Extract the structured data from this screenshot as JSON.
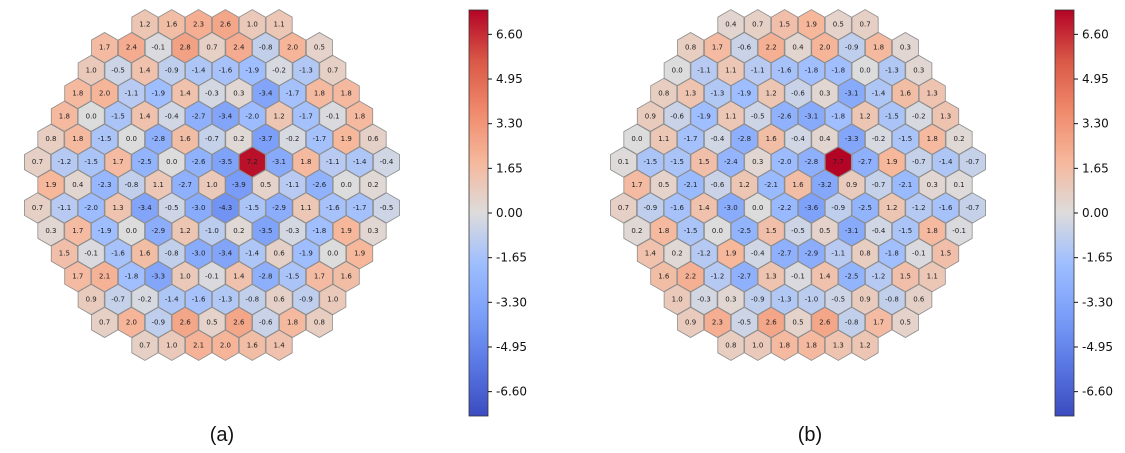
{
  "chart_data": [
    {
      "type": "heatmap",
      "panel_label": "(a)",
      "layout": "hexagonal",
      "rows": [
        [
          "1.2",
          "1.6",
          "2.3",
          "2.6",
          "1.0",
          "1.1"
        ],
        [
          "1.7",
          "2.4",
          "-0.1",
          "2.8",
          "0.7",
          "2.4",
          "-0.8",
          "2.0",
          "0.5"
        ],
        [
          "1.0",
          "-0.5",
          "1.4",
          "-0.9",
          "-1.4",
          "-1.6",
          "-1.9",
          "-0.2",
          "-1.3",
          "0.7"
        ],
        [
          "1.8",
          "2.0",
          "-1.1",
          "-1.9",
          "1.4",
          "-0.3",
          "0.3",
          "-3.4",
          "-1.7",
          "1.8",
          "1.8"
        ],
        [
          "1.8",
          "0.0",
          "-1.5",
          "1.4",
          "-0.4",
          "-2.7",
          "-3.4",
          "-2.0",
          "1.2",
          "-1.7",
          "-0.1",
          "1.8"
        ],
        [
          "0.8",
          "1.8",
          "-1.5",
          "0.0",
          "-2.8",
          "1.6",
          "-0.7",
          "0.2",
          "-3.7",
          "-0.2",
          "-1.7",
          "1.9",
          "0.6"
        ],
        [
          "0.7",
          "-1.2",
          "-1.5",
          "1.7",
          "-2.5",
          "0.0",
          "-2.6",
          "-3.5",
          "7.2",
          "-3.1",
          "1.8",
          "-1.1",
          "-1.4",
          "-0.4"
        ],
        [
          "1.9",
          "0.4",
          "-2.3",
          "-0.8",
          "1.1",
          "-2.7",
          "1.0",
          "-3.9",
          "0.5",
          "-1.1",
          "-2.6",
          "0.0",
          "0.2"
        ],
        [
          "0.7",
          "-1.1",
          "-2.0",
          "1.3",
          "-3.4",
          "-0.5",
          "-3.0",
          "-4.3",
          "-1.5",
          "-2.9",
          "1.1",
          "-1.6",
          "-1.7",
          "-0.5"
        ],
        [
          "0.3",
          "1.7",
          "-1.9",
          "0.0",
          "-2.9",
          "1.2",
          "-1.0",
          "0.2",
          "-3.5",
          "-0.3",
          "-1.8",
          "1.9",
          "0.3"
        ],
        [
          "1.5",
          "-0.1",
          "-1.6",
          "1.6",
          "-0.8",
          "-3.0",
          "-3.4",
          "-1.4",
          "0.6",
          "-1.9",
          "0.0",
          "1.9"
        ],
        [
          "1.7",
          "2.1",
          "-1.8",
          "-3.3",
          "1.0",
          "-0.1",
          "1.4",
          "-2.8",
          "-1.5",
          "1.7",
          "1.6"
        ],
        [
          "0.9",
          "-0.7",
          "-0.2",
          "-1.4",
          "-1.6",
          "-1.3",
          "-0.8",
          "0.6",
          "-0.9",
          "1.0"
        ],
        [
          "0.7",
          "2.0",
          "-0.9",
          "2.6",
          "0.5",
          "2.6",
          "-0.6",
          "1.8",
          "0.8"
        ],
        [
          "0.7",
          "1.0",
          "2.1",
          "2.0",
          "1.6",
          "1.4"
        ]
      ],
      "colorbar": {
        "vmin": -7.5,
        "vmax": 7.5,
        "ticks": [
          "6.60",
          "4.95",
          "3.30",
          "1.65",
          "0.00",
          "-1.65",
          "-3.30",
          "-4.95",
          "-6.60"
        ],
        "colormap": "coolwarm"
      }
    },
    {
      "type": "heatmap",
      "panel_label": "(b)",
      "layout": "hexagonal",
      "rows": [
        [
          "0.4",
          "0.7",
          "1.5",
          "1.9",
          "0.5",
          "0.7"
        ],
        [
          "0.8",
          "1.7",
          "-0.6",
          "2.2",
          "0.4",
          "2.0",
          "-0.9",
          "1.8",
          "0.3"
        ],
        [
          "0.0",
          "-1.1",
          "1.1",
          "-1.1",
          "-1.6",
          "-1.8",
          "-1.8",
          "0.0",
          "-1.3",
          "0.3"
        ],
        [
          "0.8",
          "1.3",
          "-1.3",
          "-1.9",
          "1.2",
          "-0.6",
          "0.3",
          "-3.1",
          "-1.4",
          "1.6",
          "1.3"
        ],
        [
          "0.9",
          "-0.6",
          "-1.9",
          "1.1",
          "-0.5",
          "-2.6",
          "-3.1",
          "-1.8",
          "1.2",
          "-1.5",
          "-0.2",
          "1.3"
        ],
        [
          "0.0",
          "1.1",
          "-1.7",
          "-0.4",
          "-2.8",
          "1.6",
          "-0.4",
          "0.4",
          "-3.3",
          "-0.2",
          "-1.5",
          "1.8",
          "0.2"
        ],
        [
          "0.1",
          "-1.5",
          "-1.5",
          "1.5",
          "-2.4",
          "0.3",
          "-2.0",
          "-2.8",
          "7.7",
          "-2.7",
          "1.9",
          "-0.7",
          "-1.4",
          "-0.7"
        ],
        [
          "1.7",
          "0.5",
          "-2.1",
          "-0.6",
          "1.2",
          "-2.1",
          "1.6",
          "-3.2",
          "0.9",
          "-0.7",
          "-2.1",
          "0.3",
          "0.1"
        ],
        [
          "0.7",
          "-0.9",
          "-1.6",
          "1.4",
          "-3.0",
          "0.0",
          "-2.2",
          "-3.6",
          "-0.9",
          "-2.5",
          "1.2",
          "-1.2",
          "-1.6",
          "-0.7"
        ],
        [
          "0.2",
          "1.8",
          "-1.5",
          "0.0",
          "-2.5",
          "1.5",
          "-0.5",
          "0.5",
          "-3.1",
          "-0.4",
          "-1.5",
          "1.8",
          "-0.1"
        ],
        [
          "1.4",
          "0.2",
          "-1.2",
          "1.9",
          "-0.4",
          "-2.7",
          "-2.9",
          "-1.1",
          "0.8",
          "-1.8",
          "-0.1",
          "1.5"
        ],
        [
          "1.6",
          "2.2",
          "-1.2",
          "-2.7",
          "1.3",
          "-0.1",
          "1.4",
          "-2.5",
          "-1.2",
          "1.5",
          "1.1"
        ],
        [
          "1.0",
          "-0.3",
          "0.3",
          "-0.9",
          "-1.3",
          "-1.0",
          "-0.5",
          "0.9",
          "-0.8",
          "0.6"
        ],
        [
          "0.9",
          "2.3",
          "-0.5",
          "2.6",
          "0.5",
          "2.6",
          "-0.8",
          "1.7",
          "0.5"
        ],
        [
          "0.8",
          "1.0",
          "1.8",
          "1.8",
          "1.3",
          "1.2"
        ]
      ],
      "colorbar": {
        "vmin": -7.5,
        "vmax": 7.5,
        "ticks": [
          "6.60",
          "4.95",
          "3.30",
          "1.65",
          "0.00",
          "-1.65",
          "-3.30",
          "-4.95",
          "-6.60"
        ],
        "colormap": "coolwarm"
      }
    }
  ]
}
